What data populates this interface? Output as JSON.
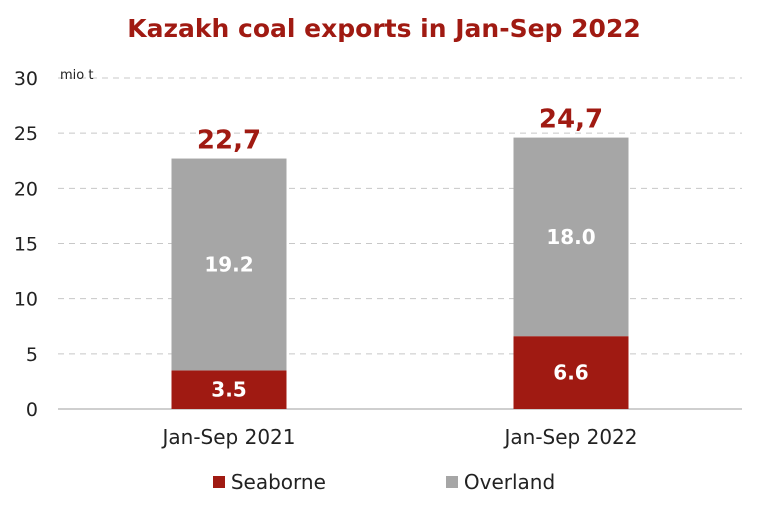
{
  "chart_data": {
    "type": "bar",
    "stacked": true,
    "title": "Kazakh coal exports in Jan-Sep 2022",
    "unit_label": "mio t",
    "categories": [
      "Jan-Sep 2021",
      "Jan-Sep 2022"
    ],
    "series": [
      {
        "name": "Seaborne",
        "values": [
          3.5,
          6.6
        ],
        "labels": [
          "3.5",
          "6.6"
        ],
        "color": "#a01a12"
      },
      {
        "name": "Overland",
        "values": [
          19.2,
          18.0
        ],
        "labels": [
          "19.2",
          "18.0"
        ],
        "color": "#a6a6a6"
      }
    ],
    "totals": [
      "22,7",
      "24,7"
    ],
    "ylim": [
      0,
      30
    ],
    "yticks": [
      "0",
      "5",
      "10",
      "15",
      "20",
      "25",
      "30"
    ],
    "grid": true,
    "legend_position": "bottom"
  }
}
